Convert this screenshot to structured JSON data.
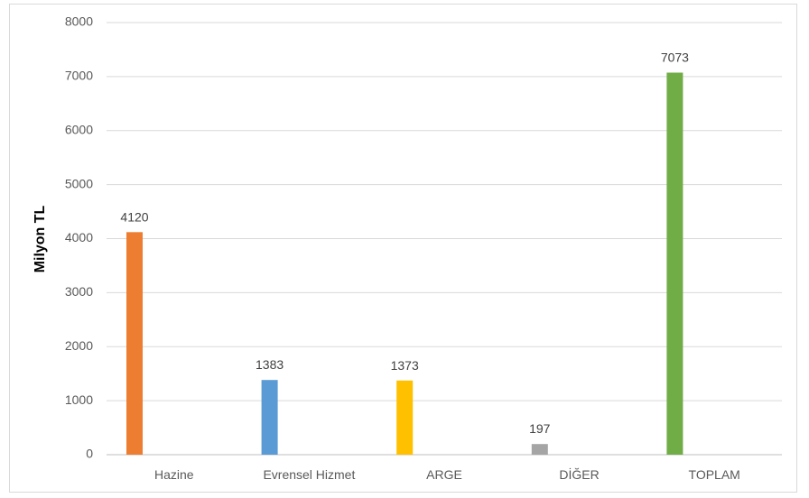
{
  "chart_data": {
    "type": "bar",
    "title": "",
    "xlabel": "",
    "ylabel": "Milyon TL",
    "ylim": [
      0,
      8000
    ],
    "yticks": [
      0,
      1000,
      2000,
      3000,
      4000,
      5000,
      6000,
      7000,
      8000
    ],
    "grid": true,
    "legend": "none",
    "categories": [
      "Hazine",
      "Evrensel Hizmet",
      "ARGE",
      "DİĞER",
      "TOPLAM"
    ],
    "values": [
      4120,
      1383,
      1373,
      197,
      7073
    ],
    "colors": [
      "#ed7d31",
      "#5b9bd5",
      "#ffc000",
      "#a5a5a5",
      "#70ad47"
    ]
  }
}
